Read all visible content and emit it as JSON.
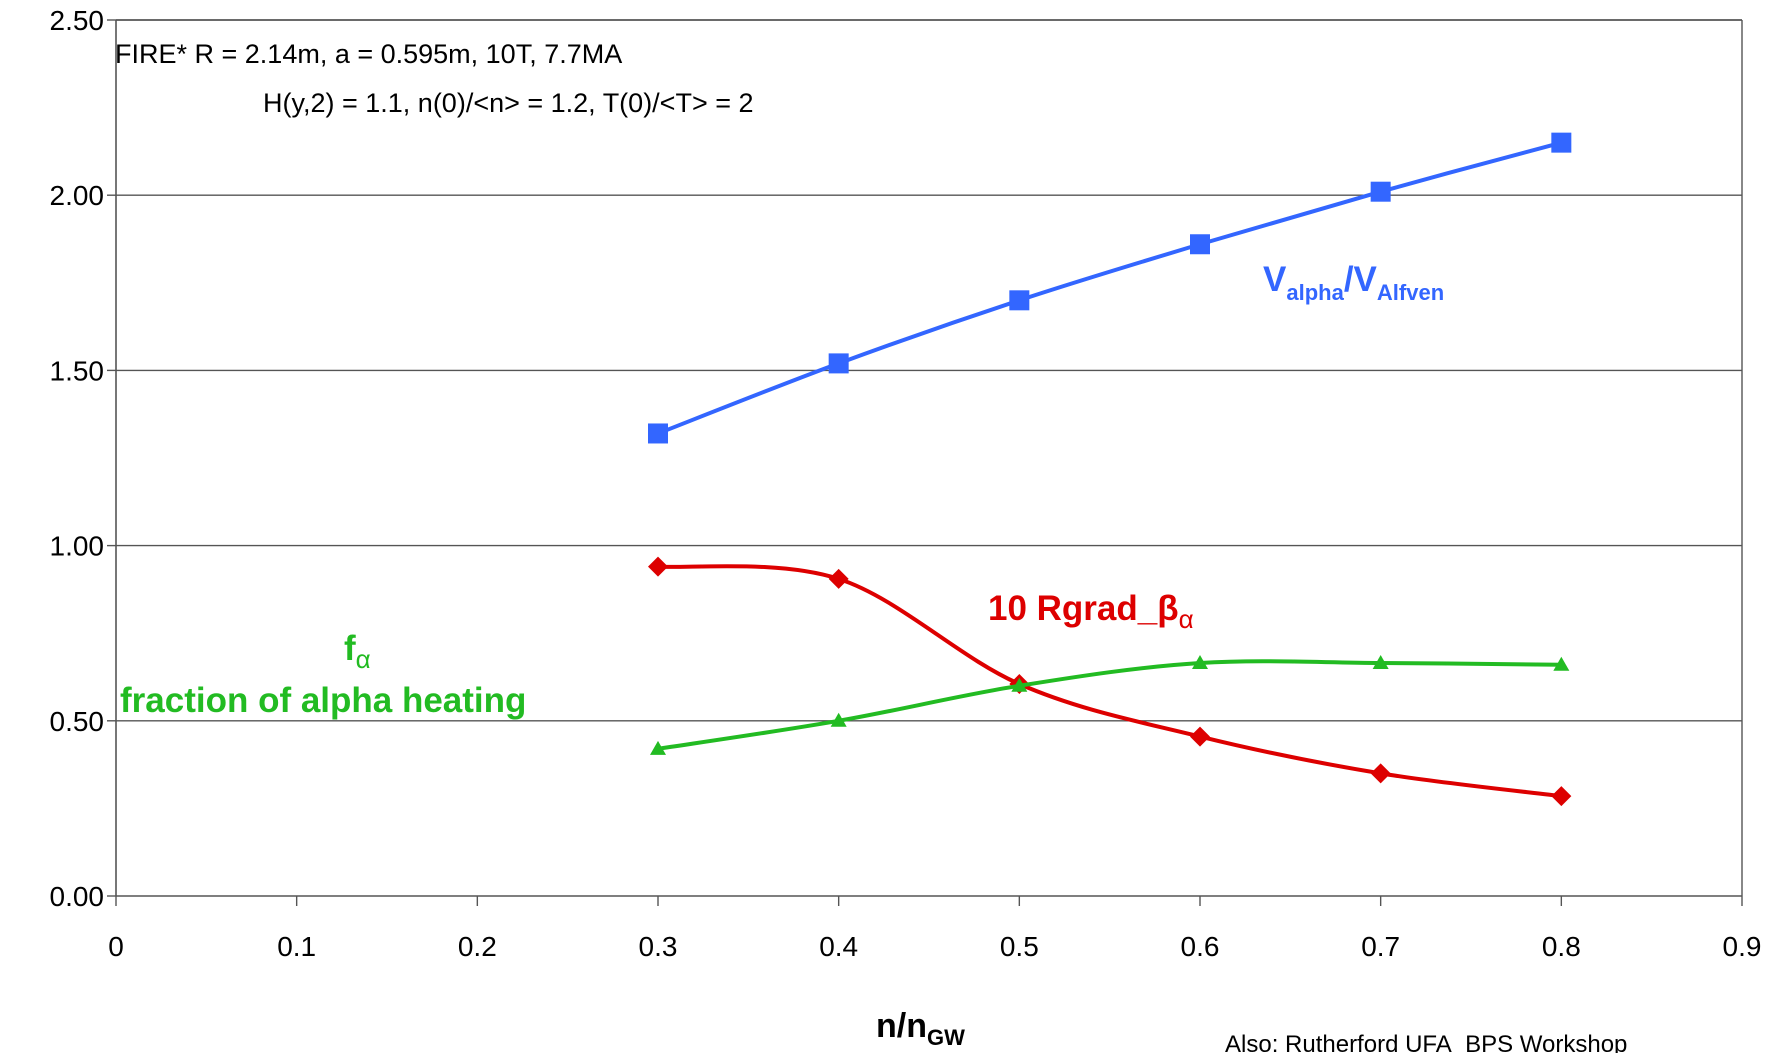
{
  "chart_data": {
    "type": "line",
    "x": [
      0.3,
      0.4,
      0.5,
      0.6,
      0.7,
      0.8
    ],
    "xlim": [
      0,
      0.9
    ],
    "ylim": [
      0,
      2.5
    ],
    "xticks": [
      "0",
      "0.1",
      "0.2",
      "0.3",
      "0.4",
      "0.5",
      "0.6",
      "0.7",
      "0.8",
      "0.9"
    ],
    "yticks": [
      "0.00",
      "0.50",
      "1.00",
      "1.50",
      "2.00",
      "2.50"
    ],
    "grid": "horizontal",
    "xlabel": {
      "main": "n/n",
      "sub": "GW"
    },
    "annotation": [
      "FIRE* R = 2.14m, a = 0.595m, 10T, 7.7MA",
      "H(y,2) = 1.1, n(0)/<n> = 1.2, T(0)/<T> = 2"
    ],
    "footnote": "Also: Rutherford UFA_BPS Workshop",
    "series": [
      {
        "key": "valpha",
        "color": "#3366ff",
        "marker": "square",
        "values": [
          1.32,
          1.52,
          1.7,
          1.86,
          2.01,
          2.15
        ],
        "label": {
          "p1": "V",
          "s1": "alpha",
          "p2": "/V",
          "s2": "Alfven"
        }
      },
      {
        "key": "rgrad",
        "color": "#dd0000",
        "marker": "diamond",
        "values": [
          0.94,
          0.905,
          0.605,
          0.455,
          0.35,
          0.285
        ],
        "label": {
          "p1": "10 Rgrad_β",
          "s1": "α"
        }
      },
      {
        "key": "falpha",
        "color": "#22bb22",
        "marker": "triangle",
        "values": [
          0.42,
          0.5,
          0.6,
          0.665,
          0.665,
          0.66
        ],
        "label": {
          "p1": "f",
          "s1": "α",
          "line2": "fraction of alpha heating"
        }
      }
    ]
  }
}
